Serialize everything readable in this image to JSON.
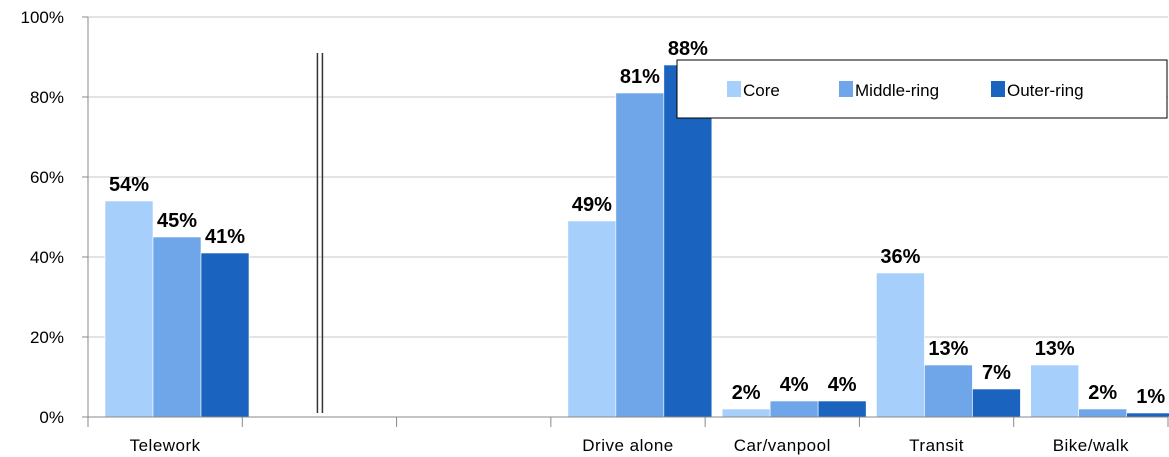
{
  "chart_data": {
    "type": "bar",
    "categories": [
      "Telework",
      "",
      "",
      "Drive alone",
      "Car/vanpool",
      "Transit",
      "Bike/walk"
    ],
    "series": [
      {
        "name": "Core",
        "values": [
          54,
          null,
          null,
          49,
          2,
          36,
          13
        ],
        "color": "#a6d0fb"
      },
      {
        "name": "Middle-ring",
        "values": [
          45,
          null,
          null,
          81,
          4,
          13,
          2
        ],
        "color": "#6ea6e9"
      },
      {
        "name": "Outer-ring",
        "values": [
          41,
          null,
          null,
          88,
          4,
          7,
          1
        ],
        "color": "#1a63be"
      }
    ],
    "value_labels": {
      "Core": [
        "54%",
        "",
        "",
        "49%",
        "2%",
        "36%",
        "13%"
      ],
      "Middle-ring": [
        "45%",
        "",
        "",
        "81%",
        "4%",
        "13%",
        "2%"
      ],
      "Outer-ring": [
        "41%",
        "",
        "",
        "88%",
        "4%",
        "7%",
        "1%"
      ]
    },
    "y_ticks": [
      "0%",
      "20%",
      "40%",
      "60%",
      "80%",
      "100%"
    ],
    "ylim": [
      0,
      100
    ],
    "grid": true,
    "legend_position": "top-right",
    "divider_after_category": "Telework"
  }
}
